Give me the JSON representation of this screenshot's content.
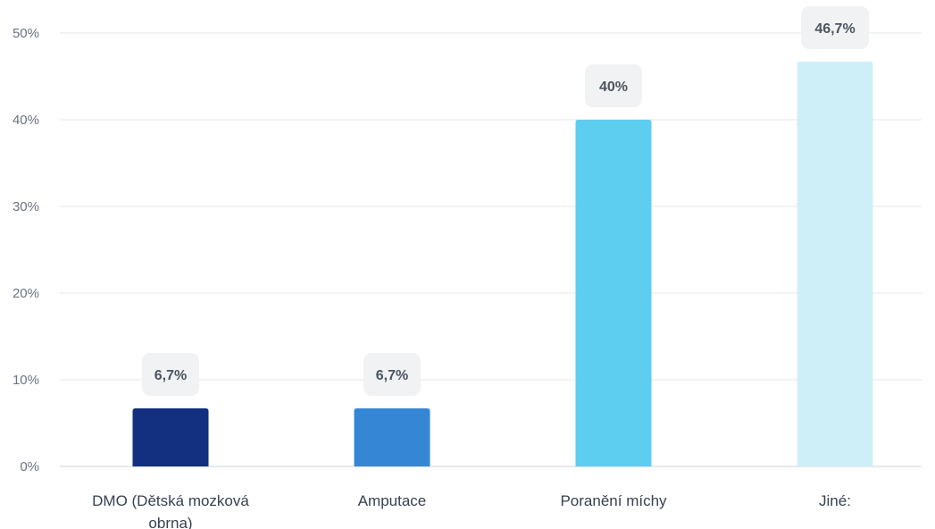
{
  "chart_data": {
    "type": "bar",
    "title": "",
    "xlabel": "",
    "ylabel": "",
    "categories": [
      [
        "DMO (Dětská mozková",
        "obrna)"
      ],
      [
        "Amputace"
      ],
      [
        "Poranění míchy"
      ],
      [
        "Jiné:"
      ]
    ],
    "values": [
      6.7,
      6.7,
      40,
      46.7
    ],
    "value_labels": [
      "6,7%",
      "6,7%",
      "40%",
      "46,7%"
    ],
    "bar_colors": [
      "#122f80",
      "#3587d6",
      "#5dcdf0",
      "#cfeff8"
    ],
    "ylim": [
      0,
      50
    ],
    "yticks": [
      0,
      10,
      20,
      30,
      40,
      50
    ],
    "ytick_labels": [
      "0%",
      "10%",
      "20%",
      "30%",
      "40%",
      "50%"
    ],
    "grid": true,
    "legend": "none",
    "colors": {
      "grid": "#e5e7eb",
      "label_bg": "#f1f2f3"
    }
  }
}
